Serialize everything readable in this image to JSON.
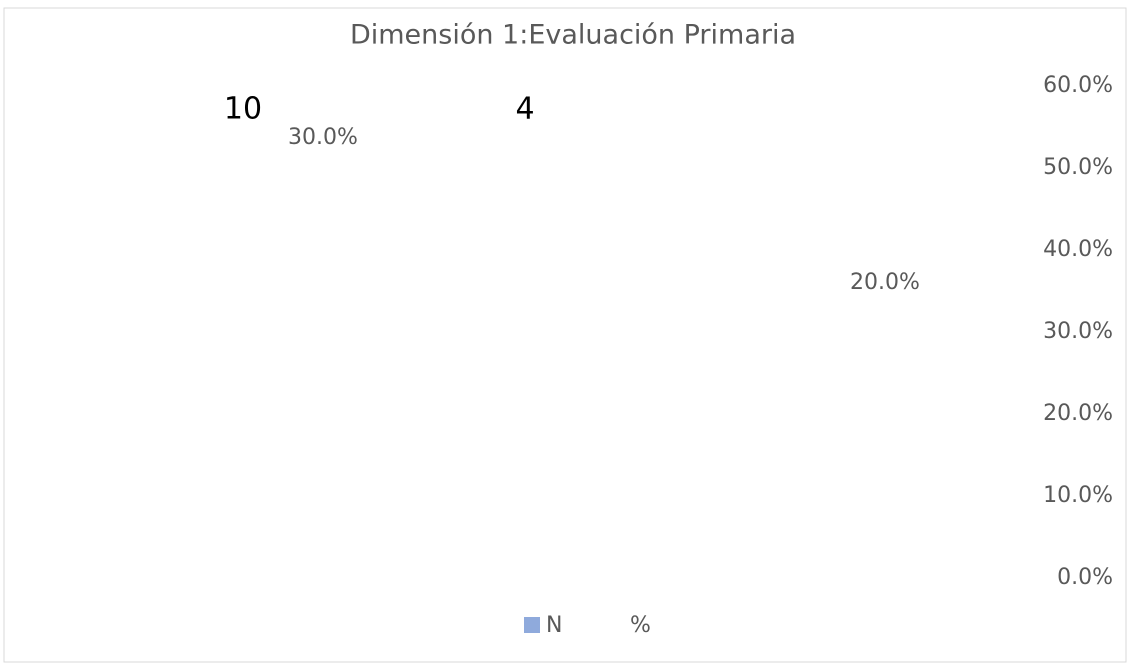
{
  "chart_data": {
    "type": "bar",
    "title": "Dimensión 1:Evaluación Primaria",
    "categories": [
      null,
      null
    ],
    "series": [
      {
        "name": "N",
        "color": "#8faadc",
        "values": [
          10,
          4
        ]
      },
      {
        "name": "%",
        "axis": "y2",
        "values": [
          30,
          20
        ],
        "value_labels": [
          "30.0%",
          "20.0%"
        ]
      }
    ],
    "y2lim": [
      0,
      60
    ],
    "y2ticks": [
      {
        "value": 0,
        "label": "0.0%"
      },
      {
        "value": 10,
        "label": "10.0%"
      },
      {
        "value": 20,
        "label": "20.0%"
      },
      {
        "value": 30,
        "label": "30.0%"
      },
      {
        "value": 40,
        "label": "40.0%"
      },
      {
        "value": 50,
        "label": "50.0%"
      },
      {
        "value": 60,
        "label": "60.0%"
      }
    ],
    "legend": "bottom"
  }
}
